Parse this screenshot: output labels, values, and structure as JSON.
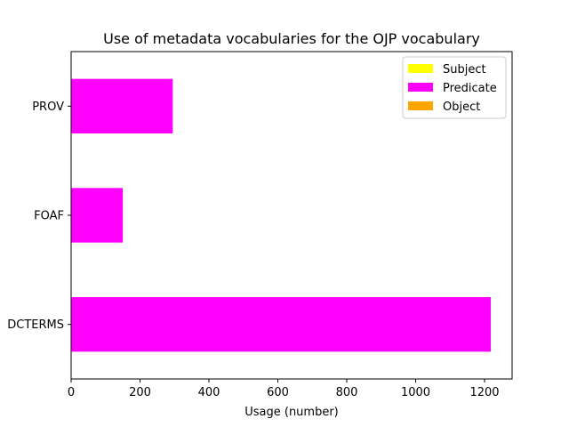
{
  "chart_data": {
    "type": "bar",
    "orientation": "horizontal",
    "stacked": true,
    "title": "Use of metadata vocabularies for the OJP vocabulary",
    "xlabel": "Usage (number)",
    "ylabel": "",
    "categories": [
      "DCTERMS",
      "FOAF",
      "PROV"
    ],
    "xlim": [
      0,
      1280
    ],
    "xticks": [
      0,
      200,
      400,
      600,
      800,
      1000,
      1200
    ],
    "series": [
      {
        "name": "Subject",
        "color": "#ffff00",
        "values": [
          0,
          0,
          0
        ]
      },
      {
        "name": "Predicate",
        "color": "#ff00ff",
        "values": [
          1218,
          150,
          295
        ]
      },
      {
        "name": "Object",
        "color": "#ffa500",
        "values": [
          0,
          0,
          0
        ]
      }
    ],
    "legend_position": "top-right",
    "grid": false
  }
}
